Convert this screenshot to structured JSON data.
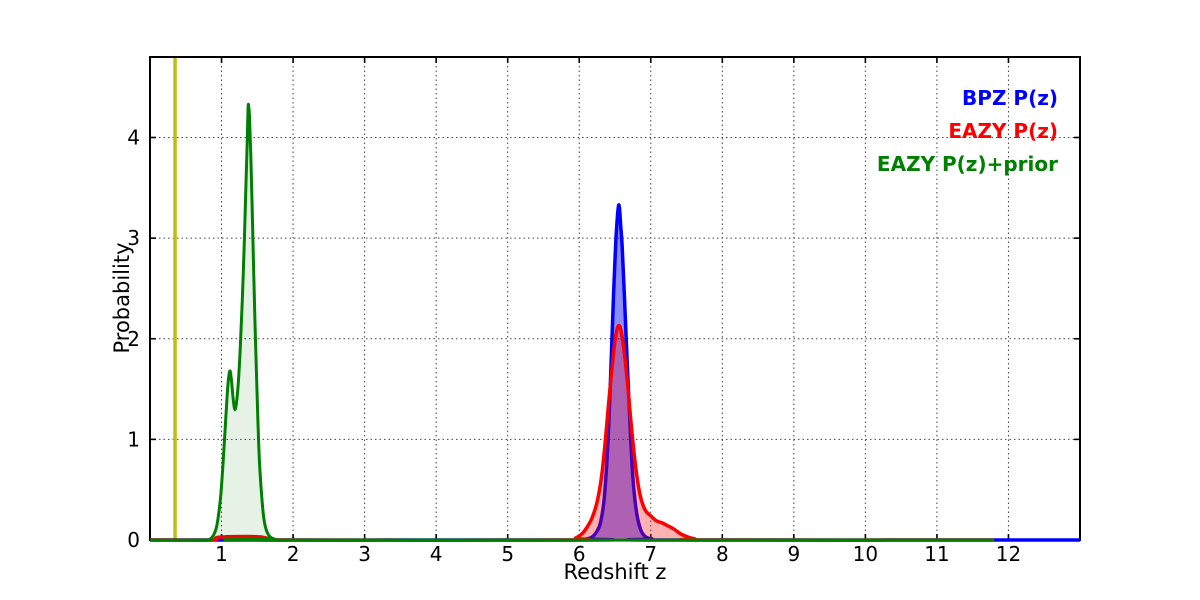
{
  "chart_data": {
    "type": "line",
    "title": "",
    "xlabel": "Redshift z",
    "ylabel": "Probability",
    "xlim": [
      0,
      13
    ],
    "ylim": [
      0,
      4.8
    ],
    "xticks": [
      1,
      2,
      3,
      4,
      5,
      6,
      7,
      8,
      9,
      10,
      11,
      12
    ],
    "yticks": [
      0,
      1,
      2,
      3,
      4
    ],
    "grid": "dotted",
    "grid_color": "#444444",
    "frame_color": "#000000",
    "legend_position": "upper right",
    "series": [
      {
        "name": "BPZ P(z)",
        "color": "#0000ff",
        "fill_opacity": 0.45,
        "line_width": 3.5,
        "points": [
          [
            0.0,
            0
          ],
          [
            6.0,
            0
          ],
          [
            6.1,
            0.01
          ],
          [
            6.18,
            0.03
          ],
          [
            6.25,
            0.09
          ],
          [
            6.3,
            0.18
          ],
          [
            6.35,
            0.42
          ],
          [
            6.4,
            0.95
          ],
          [
            6.44,
            1.65
          ],
          [
            6.48,
            2.45
          ],
          [
            6.51,
            2.95
          ],
          [
            6.53,
            3.18
          ],
          [
            6.545,
            3.3
          ],
          [
            6.555,
            3.33
          ],
          [
            6.565,
            3.28
          ],
          [
            6.58,
            3.12
          ],
          [
            6.6,
            2.92
          ],
          [
            6.63,
            2.45
          ],
          [
            6.67,
            1.78
          ],
          [
            6.71,
            1.15
          ],
          [
            6.75,
            0.62
          ],
          [
            6.8,
            0.28
          ],
          [
            6.86,
            0.1
          ],
          [
            6.93,
            0.03
          ],
          [
            7.02,
            0.01
          ],
          [
            7.15,
            0
          ],
          [
            13.0,
            0
          ]
        ]
      },
      {
        "name": "EAZY P(z)",
        "color": "#ff0000",
        "fill_opacity": 0.3,
        "line_width": 3.5,
        "points": [
          [
            0.0,
            0
          ],
          [
            0.85,
            0
          ],
          [
            0.92,
            0.02
          ],
          [
            1.0,
            0.03
          ],
          [
            1.35,
            0.035
          ],
          [
            1.55,
            0.03
          ],
          [
            1.65,
            0.015
          ],
          [
            1.75,
            0
          ],
          [
            5.8,
            0
          ],
          [
            5.95,
            0.02
          ],
          [
            6.05,
            0.07
          ],
          [
            6.12,
            0.14
          ],
          [
            6.18,
            0.22
          ],
          [
            6.25,
            0.38
          ],
          [
            6.31,
            0.62
          ],
          [
            6.36,
            0.95
          ],
          [
            6.41,
            1.35
          ],
          [
            6.46,
            1.72
          ],
          [
            6.5,
            1.98
          ],
          [
            6.53,
            2.1
          ],
          [
            6.56,
            2.13
          ],
          [
            6.59,
            2.06
          ],
          [
            6.63,
            1.86
          ],
          [
            6.68,
            1.52
          ],
          [
            6.73,
            1.12
          ],
          [
            6.79,
            0.72
          ],
          [
            6.85,
            0.45
          ],
          [
            6.92,
            0.3
          ],
          [
            7.0,
            0.24
          ],
          [
            7.08,
            0.19
          ],
          [
            7.16,
            0.17
          ],
          [
            7.24,
            0.14
          ],
          [
            7.32,
            0.11
          ],
          [
            7.42,
            0.06
          ],
          [
            7.52,
            0.03
          ],
          [
            7.62,
            0.01
          ],
          [
            7.75,
            0
          ],
          [
            11.8,
            0
          ]
        ]
      },
      {
        "name": "EAZY P(z)+prior",
        "color": "#008000",
        "fill_opacity": 0.1,
        "line_width": 3.0,
        "points": [
          [
            0.0,
            0
          ],
          [
            0.78,
            0
          ],
          [
            0.84,
            0.01
          ],
          [
            0.89,
            0.05
          ],
          [
            0.93,
            0.13
          ],
          [
            0.96,
            0.26
          ],
          [
            0.99,
            0.45
          ],
          [
            1.02,
            0.75
          ],
          [
            1.05,
            1.1
          ],
          [
            1.08,
            1.45
          ],
          [
            1.1,
            1.62
          ],
          [
            1.12,
            1.68
          ],
          [
            1.14,
            1.58
          ],
          [
            1.16,
            1.42
          ],
          [
            1.18,
            1.31
          ],
          [
            1.2,
            1.32
          ],
          [
            1.23,
            1.52
          ],
          [
            1.26,
            1.88
          ],
          [
            1.29,
            2.38
          ],
          [
            1.32,
            3.0
          ],
          [
            1.34,
            3.5
          ],
          [
            1.36,
            3.98
          ],
          [
            1.37,
            4.28
          ],
          [
            1.375,
            4.33
          ],
          [
            1.38,
            4.3
          ],
          [
            1.39,
            4.22
          ],
          [
            1.41,
            3.8
          ],
          [
            1.43,
            3.25
          ],
          [
            1.45,
            2.65
          ],
          [
            1.47,
            2.1
          ],
          [
            1.49,
            1.62
          ],
          [
            1.51,
            1.15
          ],
          [
            1.53,
            0.78
          ],
          [
            1.56,
            0.45
          ],
          [
            1.59,
            0.22
          ],
          [
            1.63,
            0.09
          ],
          [
            1.68,
            0.03
          ],
          [
            1.74,
            0.01
          ],
          [
            1.8,
            0
          ],
          [
            11.8,
            0
          ]
        ]
      }
    ],
    "vlines": [
      {
        "x": 0.35,
        "color": "#bdbf0c",
        "width": 3.5,
        "name": "yellow-marker-line"
      }
    ]
  }
}
